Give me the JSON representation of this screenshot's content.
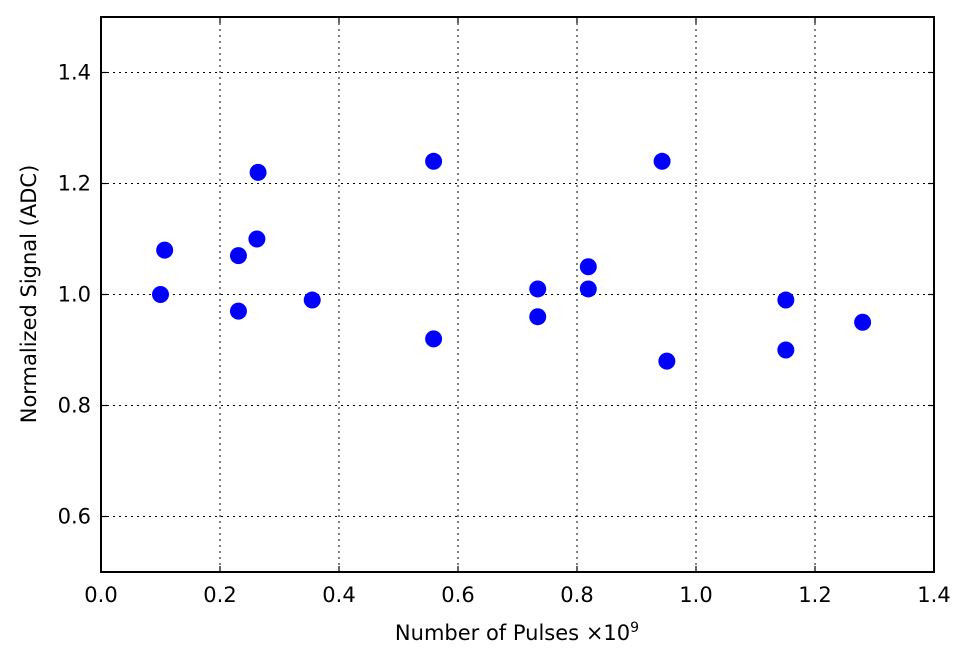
{
  "chart_data": {
    "type": "scatter",
    "xlabel": "Number of Pulses",
    "xlabel_multiplier": "×10",
    "xlabel_exponent": "9",
    "ylabel": "Normalized Signal (ADC)",
    "xlim": [
      0.0,
      1.4
    ],
    "ylim": [
      0.5,
      1.5
    ],
    "xticks": [
      0.0,
      0.2,
      0.4,
      0.6,
      0.8,
      1.0,
      1.2,
      1.4
    ],
    "xtick_labels": [
      "0.0",
      "0.2",
      "0.4",
      "0.6",
      "0.8",
      "1.0",
      "1.2",
      "1.4"
    ],
    "yticks": [
      0.6,
      0.8,
      1.0,
      1.2,
      1.4
    ],
    "ytick_labels": [
      "0.6",
      "0.8",
      "1.0",
      "1.2",
      "1.4"
    ],
    "grid": true,
    "marker_color": "#0000ff",
    "points": [
      {
        "x": 0.1,
        "y": 1.0
      },
      {
        "x": 0.107,
        "y": 1.08
      },
      {
        "x": 0.231,
        "y": 1.07
      },
      {
        "x": 0.231,
        "y": 0.97
      },
      {
        "x": 0.262,
        "y": 1.1
      },
      {
        "x": 0.264,
        "y": 1.22
      },
      {
        "x": 0.355,
        "y": 0.99
      },
      {
        "x": 0.559,
        "y": 1.24
      },
      {
        "x": 0.559,
        "y": 0.92
      },
      {
        "x": 0.734,
        "y": 1.01
      },
      {
        "x": 0.734,
        "y": 0.96
      },
      {
        "x": 0.819,
        "y": 1.05
      },
      {
        "x": 0.819,
        "y": 1.01
      },
      {
        "x": 0.943,
        "y": 1.24
      },
      {
        "x": 0.951,
        "y": 0.88
      },
      {
        "x": 1.151,
        "y": 0.99
      },
      {
        "x": 1.151,
        "y": 0.9
      },
      {
        "x": 1.28,
        "y": 0.95
      }
    ]
  }
}
